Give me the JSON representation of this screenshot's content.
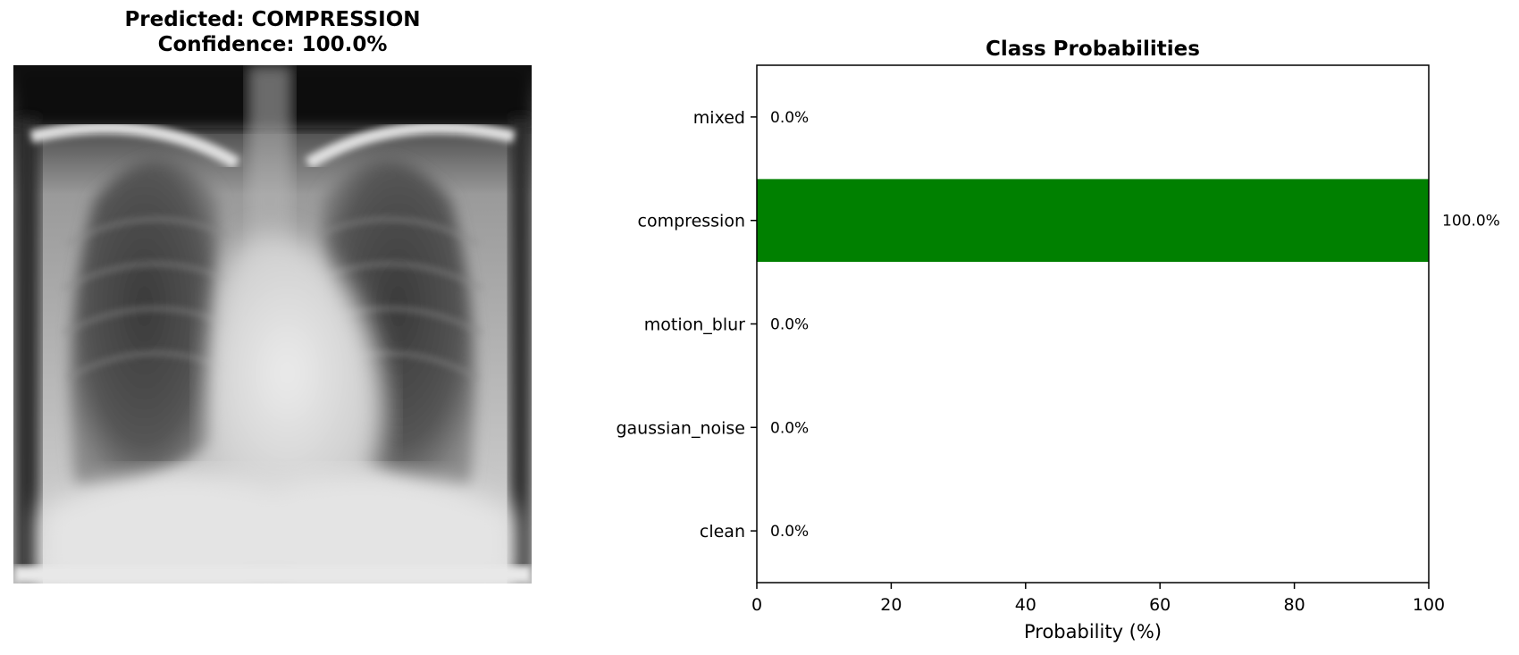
{
  "image_panel": {
    "title_line1": "Predicted: COMPRESSION",
    "title_line2": "Confidence: 100.0%",
    "image_subject": "chest-xray"
  },
  "chart_data": {
    "type": "bar",
    "orientation": "horizontal",
    "title": "Class Probabilities",
    "xlabel": "Probability (%)",
    "ylabel": "",
    "xlim": [
      0,
      100
    ],
    "xticks": [
      0,
      20,
      40,
      60,
      80,
      100
    ],
    "categories": [
      "mixed",
      "compression",
      "motion_blur",
      "gaussian_noise",
      "clean"
    ],
    "values": [
      0.0,
      100.0,
      0.0,
      0.0,
      0.0
    ],
    "value_labels": [
      "0.0%",
      "100.0%",
      "0.0%",
      "0.0%",
      "0.0%"
    ],
    "bar_color": "#008000",
    "grid": false
  }
}
